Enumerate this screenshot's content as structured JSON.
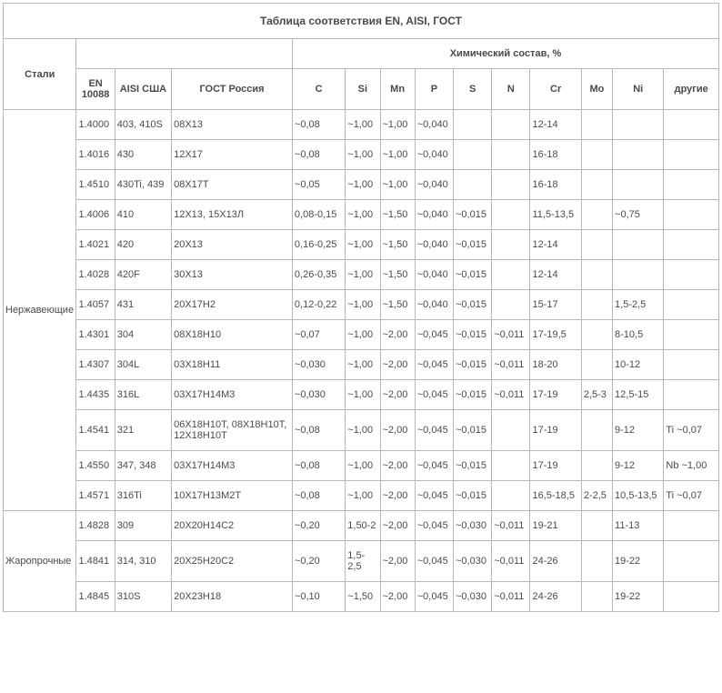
{
  "title": "Таблица соответствия EN, AISI, ГОСТ",
  "headers": {
    "group": "Стали",
    "chem": "Химический состав, %",
    "en": "EN 10088",
    "aisi": "AISI США",
    "gost": "ГОСТ Россия",
    "C": "C",
    "Si": "Si",
    "Mn": "Mn",
    "P": "P",
    "S": "S",
    "N": "N",
    "Cr": "Cr",
    "Mo": "Mo",
    "Ni": "Ni",
    "other": "другие"
  },
  "groups": [
    {
      "name": "Нержавеющие",
      "rows": [
        {
          "en": "1.4000",
          "aisi": "403, 410S",
          "gost": "08Х13",
          "C": "~0,08",
          "Si": "~1,00",
          "Mn": "~1,00",
          "P": "~0,040",
          "S": "",
          "N": "",
          "Cr": "12-14",
          "Mo": "",
          "Ni": "",
          "other": ""
        },
        {
          "en": "1.4016",
          "aisi": "430",
          "gost": "12Х17",
          "C": "~0,08",
          "Si": "~1,00",
          "Mn": "~1,00",
          "P": "~0,040",
          "S": "",
          "N": "",
          "Cr": "16-18",
          "Mo": "",
          "Ni": "",
          "other": ""
        },
        {
          "en": "1.4510",
          "aisi": "430Ti, 439",
          "gost": "08Х17Т",
          "C": "~0,05",
          "Si": "~1,00",
          "Mn": "~1,00",
          "P": "~0,040",
          "S": "",
          "N": "",
          "Cr": "16-18",
          "Mo": "",
          "Ni": "",
          "other": ""
        },
        {
          "en": "1.4006",
          "aisi": "410",
          "gost": "12Х13, 15Х13Л",
          "C": "0,08-0,15",
          "Si": "~1,00",
          "Mn": "~1,50",
          "P": "~0,040",
          "S": "~0,015",
          "N": "",
          "Cr": "11,5-13,5",
          "Mo": "",
          "Ni": "~0,75",
          "other": ""
        },
        {
          "en": "1.4021",
          "aisi": "420",
          "gost": "20Х13",
          "C": "0,16-0,25",
          "Si": "~1,00",
          "Mn": "~1,50",
          "P": "~0,040",
          "S": "~0,015",
          "N": "",
          "Cr": "12-14",
          "Mo": "",
          "Ni": "",
          "other": ""
        },
        {
          "en": "1.4028",
          "aisi": "420F",
          "gost": "30Х13",
          "C": "0,26-0,35",
          "Si": "~1,00",
          "Mn": "~1,50",
          "P": "~0,040",
          "S": "~0,015",
          "N": "",
          "Cr": "12-14",
          "Mo": "",
          "Ni": "",
          "other": ""
        },
        {
          "en": "1.4057",
          "aisi": "431",
          "gost": "20Х17Н2",
          "C": "0,12-0,22",
          "Si": "~1,00",
          "Mn": "~1,50",
          "P": "~0,040",
          "S": "~0,015",
          "N": "",
          "Cr": "15-17",
          "Mo": "",
          "Ni": "1,5-2,5",
          "other": ""
        },
        {
          "en": "1.4301",
          "aisi": "304",
          "gost": "08Х18Н10",
          "C": "~0,07",
          "Si": "~1,00",
          "Mn": "~2,00",
          "P": "~0,045",
          "S": "~0,015",
          "N": "~0,011",
          "Cr": "17-19,5",
          "Mo": "",
          "Ni": "8-10,5",
          "other": ""
        },
        {
          "en": "1.4307",
          "aisi": "304L",
          "gost": "03Х18Н11",
          "C": "~0,030",
          "Si": "~1,00",
          "Mn": "~2,00",
          "P": "~0,045",
          "S": "~0,015",
          "N": "~0,011",
          "Cr": "18-20",
          "Mo": "",
          "Ni": "10-12",
          "other": ""
        },
        {
          "en": "1.4435",
          "aisi": "316L",
          "gost": "03Х17Н14М3",
          "C": "~0,030",
          "Si": "~1,00",
          "Mn": "~2,00",
          "P": "~0,045",
          "S": "~0,015",
          "N": "~0,011",
          "Cr": "17-19",
          "Mo": "2,5-3",
          "Ni": "12,5-15",
          "other": ""
        },
        {
          "en": "1.4541",
          "aisi": "321",
          "gost": "06Х18Н10Т, 08Х18Н10Т, 12Х18Н10Т",
          "C": "~0,08",
          "Si": "~1,00",
          "Mn": "~2,00",
          "P": "~0,045",
          "S": "~0,015",
          "N": "",
          "Cr": "17-19",
          "Mo": "",
          "Ni": "9-12",
          "other": "Ti ~0,07"
        },
        {
          "en": "1.4550",
          "aisi": "347, 348",
          "gost": "03Х17Н14М3",
          "C": "~0,08",
          "Si": "~1,00",
          "Mn": "~2,00",
          "P": "~0,045",
          "S": "~0,015",
          "N": "",
          "Cr": "17-19",
          "Mo": "",
          "Ni": "9-12",
          "other": "Nb ~1,00"
        },
        {
          "en": "1.4571",
          "aisi": "316Ti",
          "gost": "10Х17Н13М2Т",
          "C": "~0,08",
          "Si": "~1,00",
          "Mn": "~2,00",
          "P": "~0,045",
          "S": "~0,015",
          "N": "",
          "Cr": "16,5-18,5",
          "Mo": "2-2,5",
          "Ni": "10,5-13,5",
          "other": "Ti ~0,07"
        }
      ]
    },
    {
      "name": "Жаропрочные",
      "rows": [
        {
          "en": "1.4828",
          "aisi": "309",
          "gost": "20Х20Н14С2",
          "C": "~0,20",
          "Si": "1,50-2",
          "Mn": "~2,00",
          "P": "~0,045",
          "S": "~0,030",
          "N": "~0,011",
          "Cr": "19-21",
          "Mo": "",
          "Ni": "11-13",
          "other": ""
        },
        {
          "en": "1.4841",
          "aisi": "314, 310",
          "gost": "20Х25Н20С2",
          "C": "~0,20",
          "Si": "1,5-2,5",
          "Mn": "~2,00",
          "P": "~0,045",
          "S": "~0,030",
          "N": "~0,011",
          "Cr": "24-26",
          "Mo": "",
          "Ni": "19-22",
          "other": ""
        },
        {
          "en": "1.4845",
          "aisi": "310S",
          "gost": "20Х23Н18",
          "C": "~0,10",
          "Si": "~1,50",
          "Mn": "~2,00",
          "P": "~0,045",
          "S": "~0,030",
          "N": "~0,011",
          "Cr": "24-26",
          "Mo": "",
          "Ni": "19-22",
          "other": ""
        }
      ]
    }
  ]
}
